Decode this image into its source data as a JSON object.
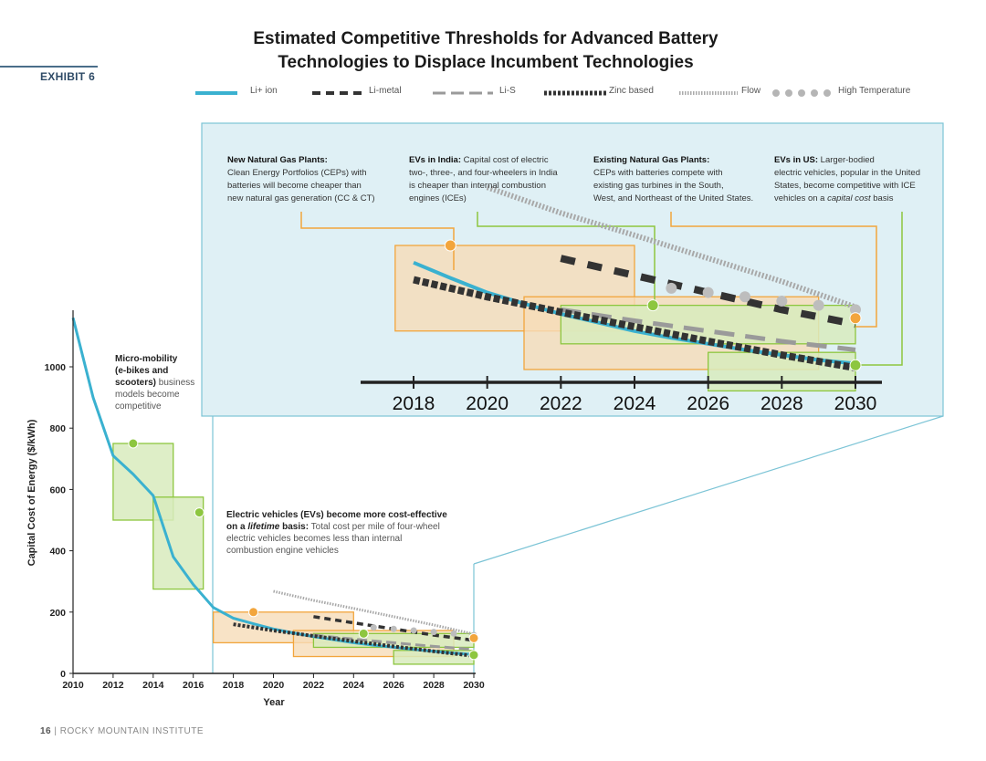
{
  "exhibit": "EXHIBIT 6",
  "footer": {
    "page": "16",
    "separator": "|",
    "org": "ROCKY MOUNTAIN INSTITUTE"
  },
  "colors": {
    "li_ion": "#3ab1d0",
    "dark": "#333333",
    "gray": "#9a9a9a",
    "dotted": "#bdbdbd",
    "orange": "#f2a53c",
    "orange_fill": "#f6dcb8",
    "green": "#8dc63f",
    "green_fill": "#d8ebbd",
    "zoom_fill": "#dff0f5",
    "zoom_stroke": "#7cc4d6"
  },
  "chart_data": {
    "type": "line",
    "title": "Estimated Competitive Thresholds for Advanced Battery Technologies to Displace Incumbent Technologies",
    "title_lines": [
      "Estimated Competitive Thresholds for Advanced Battery",
      "Technologies to Displace Incumbent Technologies"
    ],
    "xlabel": "Year",
    "ylabel": "Capital Cost of Energy ($/kWh)",
    "xlim": [
      2010,
      2030
    ],
    "ylim": [
      0,
      1000
    ],
    "x_ticks": [
      "2010",
      "2012",
      "2014",
      "2016",
      "2018",
      "2020",
      "2022",
      "2024",
      "2026",
      "2028",
      "2030"
    ],
    "y_ticks": [
      "0",
      "200",
      "400",
      "600",
      "800",
      "1000"
    ],
    "zoom_x_ticks": [
      "2018",
      "2020",
      "2022",
      "2024",
      "2026",
      "2028",
      "2030"
    ],
    "legend_position": "top",
    "series": [
      {
        "name": "Li+ ion",
        "style": "solid",
        "points": [
          [
            2010,
            1160
          ],
          [
            2011,
            900
          ],
          [
            2012,
            710
          ],
          [
            2013,
            650
          ],
          [
            2014,
            580
          ],
          [
            2015,
            380
          ],
          [
            2016,
            290
          ],
          [
            2017,
            215
          ],
          [
            2018,
            180
          ],
          [
            2019,
            162
          ],
          [
            2020,
            145
          ],
          [
            2021,
            132
          ],
          [
            2022,
            120
          ],
          [
            2023,
            110
          ],
          [
            2024,
            100
          ],
          [
            2025,
            92
          ],
          [
            2026,
            85
          ],
          [
            2027,
            78
          ],
          [
            2028,
            72
          ],
          [
            2029,
            66
          ],
          [
            2030,
            62
          ]
        ]
      },
      {
        "name": "Li-metal",
        "style": "dashed",
        "points": [
          [
            2022,
            185
          ],
          [
            2024,
            165
          ],
          [
            2026,
            145
          ],
          [
            2028,
            125
          ],
          [
            2030,
            108
          ]
        ]
      },
      {
        "name": "Li-S",
        "style": "longdash",
        "points": [
          [
            2022,
            125
          ],
          [
            2024,
            112
          ],
          [
            2026,
            100
          ],
          [
            2028,
            88
          ],
          [
            2030,
            78
          ]
        ]
      },
      {
        "name": "Zinc based",
        "style": "dense",
        "points": [
          [
            2018,
            160
          ],
          [
            2020,
            140
          ],
          [
            2022,
            122
          ],
          [
            2024,
            105
          ],
          [
            2026,
            88
          ],
          [
            2028,
            72
          ],
          [
            2030,
            57
          ]
        ]
      },
      {
        "name": "Flow",
        "style": "hatched",
        "points": [
          [
            2020,
            268
          ],
          [
            2022,
            238
          ],
          [
            2024,
            212
          ],
          [
            2026,
            185
          ],
          [
            2028,
            158
          ],
          [
            2030,
            128
          ]
        ]
      },
      {
        "name": "High Temperature",
        "style": "dots",
        "points": [
          [
            2025,
            150
          ],
          [
            2026,
            145
          ],
          [
            2027,
            140
          ],
          [
            2028,
            135
          ],
          [
            2029,
            130
          ],
          [
            2030,
            125
          ]
        ]
      }
    ],
    "regions": [
      {
        "label": "Micro-mobility",
        "x": [
          2012,
          2015
        ],
        "y": [
          500,
          750
        ],
        "kind": "green",
        "marker": [
          2013,
          750
        ]
      },
      {
        "label": "Electric vehicles lifetime",
        "x": [
          2014,
          2016.5
        ],
        "y": [
          275,
          575
        ],
        "kind": "green",
        "marker": [
          2016.3,
          525
        ]
      },
      {
        "label": "New Natural Gas Plants",
        "x": [
          2017,
          2024
        ],
        "y": [
          100,
          200
        ],
        "kind": "orange",
        "marker": [
          2019,
          200
        ]
      },
      {
        "label": "Existing Natural Gas Plants",
        "x": [
          2021,
          2029
        ],
        "y": [
          55,
          140
        ],
        "kind": "orange",
        "marker": [
          2030,
          115
        ]
      },
      {
        "label": "EVs in India",
        "x": [
          2022,
          2030
        ],
        "y": [
          85,
          130
        ],
        "kind": "green",
        "marker": [
          2024.5,
          130
        ]
      },
      {
        "label": "EVs in US",
        "x": [
          2026,
          2030
        ],
        "y": [
          30,
          75
        ],
        "kind": "green",
        "marker": [
          2030,
          60
        ]
      }
    ],
    "annotations": {
      "micro": {
        "bold": "Micro-mobility (e-bikes and scooters)",
        "normal": " business models become competitive"
      },
      "ev_lifetime": {
        "bold1": "Electric vehicles (EVs) become more cost-effective",
        "bold2": "on a ",
        "italic": "lifetime",
        "bold3": " basis:",
        "normal": " Total cost per mile of four-wheel electric vehicles becomes less than internal combustion engine vehicles"
      },
      "new_gas": {
        "bold": "New Natural Gas Plants:",
        "normal": "Clean Energy Portfolios (CEPs) with batteries will become cheaper than new natural gas generation (CC & CT)"
      },
      "ev_india": {
        "bold": "EVs in India:",
        "normal": " Capital cost of electric two-, three-, and four-wheelers in India is cheaper than internal combustion engines (ICEs)"
      },
      "existing_gas": {
        "bold": "Existing Natural Gas Plants:",
        "normal": "CEPs with batteries compete with existing gas turbines in the South, West, and Northeast of the United States."
      },
      "ev_us": {
        "bold": "EVs in US:",
        "normal": " Larger-bodied electric vehicles, popular in the United States, become competitive with ICE vehicles on a ",
        "italic": "capital cost",
        "normal2": " basis"
      }
    }
  }
}
